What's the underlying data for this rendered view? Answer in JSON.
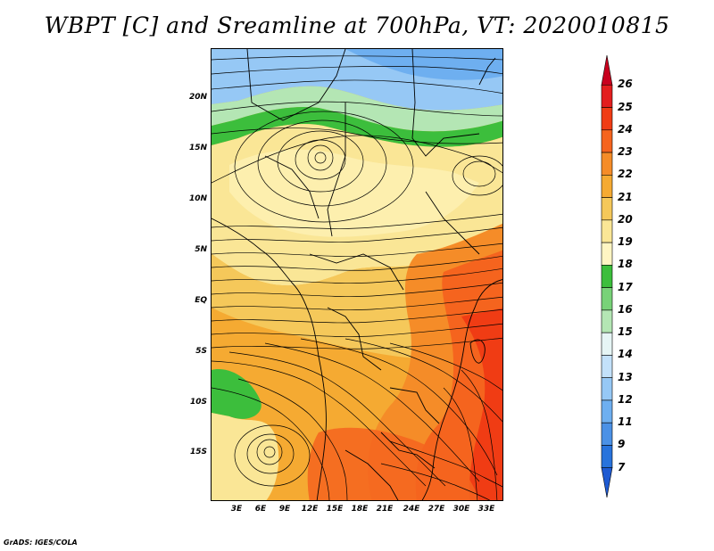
{
  "title": "WBPT [C] and Sreamline at 700hPa, VT: 2020010815",
  "credit": "GrADS: IGES/COLA",
  "lat_labels": [
    "20N",
    "15N",
    "10N",
    "5N",
    "EQ",
    "5S",
    "10S",
    "15S"
  ],
  "lon_labels": [
    "3E",
    "6E",
    "9E",
    "12E",
    "15E",
    "18E",
    "21E",
    "24E",
    "27E",
    "30E",
    "33E"
  ],
  "colorbar": {
    "labels": [
      "26",
      "25",
      "24",
      "23",
      "22",
      "21",
      "20",
      "19",
      "18",
      "17",
      "16",
      "15",
      "14",
      "13",
      "12",
      "11",
      "9",
      "7"
    ],
    "colors": [
      "#c8001e",
      "#e31e1e",
      "#f03c14",
      "#f5641e",
      "#f58c28",
      "#f5aa32",
      "#f5c85a",
      "#fae696",
      "#fff5c3",
      "#3cbe3c",
      "#78d278",
      "#b4e6b4",
      "#e6f5f5",
      "#c3e1fa",
      "#96c8f5",
      "#6eaff0",
      "#4b91e6",
      "#2873dc",
      "#1e5ad2"
    ]
  }
}
